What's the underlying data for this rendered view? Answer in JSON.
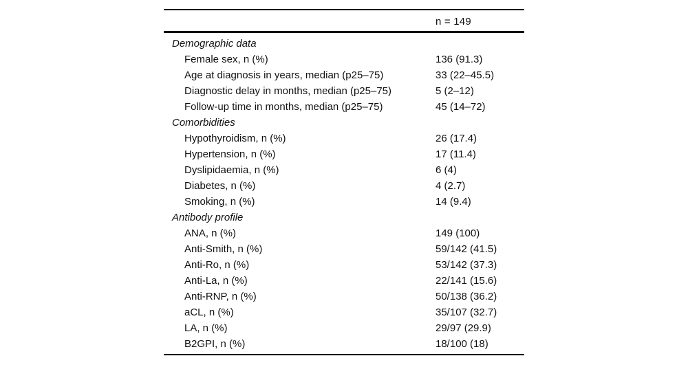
{
  "table": {
    "header_value": "n = 149",
    "sections": [
      {
        "title": "Demographic data",
        "rows": [
          {
            "label": "Female sex, n (%)",
            "value": "136 (91.3)"
          },
          {
            "label": "Age at diagnosis in years, median (p25–75)",
            "value": "33 (22–45.5)"
          },
          {
            "label": "Diagnostic delay in months, median (p25–75)",
            "value": "5 (2–12)"
          },
          {
            "label": "Follow-up time in months, median (p25–75)",
            "value": "45 (14–72)"
          }
        ]
      },
      {
        "title": "Comorbidities",
        "rows": [
          {
            "label": "Hypothyroidism, n (%)",
            "value": "26 (17.4)"
          },
          {
            "label": "Hypertension, n (%)",
            "value": "17 (11.4)"
          },
          {
            "label": "Dyslipidaemia, n (%)",
            "value": "6 (4)"
          },
          {
            "label": "Diabetes, n (%)",
            "value": "4 (2.7)"
          },
          {
            "label": "Smoking, n (%)",
            "value": "14 (9.4)"
          }
        ]
      },
      {
        "title": "Antibody profile",
        "rows": [
          {
            "label": "ANA, n (%)",
            "value": "149 (100)"
          },
          {
            "label": "Anti-Smith, n (%)",
            "value": "59/142 (41.5)"
          },
          {
            "label": "Anti-Ro, n (%)",
            "value": "53/142 (37.3)"
          },
          {
            "label": "Anti-La, n (%)",
            "value": "22/141 (15.6)"
          },
          {
            "label": "Anti-RNP, n (%)",
            "value": "50/138 (36.2)"
          },
          {
            "label": "aCL, n (%)",
            "value": "35/107 (32.7)"
          },
          {
            "label": "LA, n (%)",
            "value": "29/97 (29.9)"
          },
          {
            "label": "B2GPI, n (%)",
            "value": "18/100 (18)"
          }
        ]
      }
    ]
  }
}
